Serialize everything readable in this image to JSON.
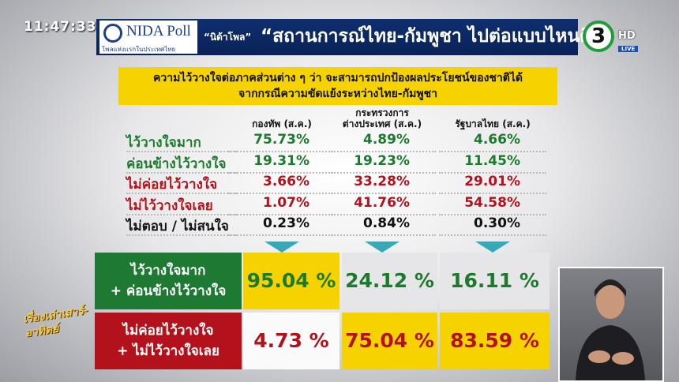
{
  "header": {
    "clock": "11:47:33",
    "logo_name": "NIDA Poll",
    "logo_tagline": "โพลแห่งแรกในประเทศไทย",
    "source": "“นิด้าโพล”",
    "title": "“สถานการณ์ไทย-กัมพูชา ไปต่อแบบไหนดี”",
    "channel": "3",
    "channel_hd": "HD",
    "channel_live": "LIVE"
  },
  "question": [
    "ความไว้วางใจต่อภาคส่วนต่าง ๆ ว่า จะสามารถปกป้องผลประโยชน์ของชาติได้",
    "จากกรณีความขัดแย้งระหว่างไทย-กัมพูชา"
  ],
  "table": {
    "columns": [
      [
        "กองทัพ (ส.ค.)"
      ],
      [
        "กระทรวงการ",
        "ต่างประเทศ (ส.ค.)"
      ],
      [
        "รัฐบาลไทย (ส.ค.)"
      ]
    ],
    "rows": [
      {
        "label": "ไว้วางใจมาก",
        "values": [
          "75.73%",
          "4.89%",
          "4.66%"
        ]
      },
      {
        "label": "ค่อนข้างไว้วางใจ",
        "values": [
          "19.31%",
          "19.23%",
          "11.45%"
        ]
      },
      {
        "label": "ไม่ค่อยไว้วางใจ",
        "values": [
          "3.66%",
          "33.28%",
          "29.01%"
        ]
      },
      {
        "label": "ไม่ไว้วางใจเลย",
        "values": [
          "1.07%",
          "41.76%",
          "54.58%"
        ]
      },
      {
        "label": "ไม่ตอบ / ไม่สนใจ",
        "values": [
          "0.23%",
          "0.84%",
          "0.30%"
        ]
      }
    ]
  },
  "summary": {
    "rows": [
      {
        "label": [
          "ไว้วางใจมาก",
          "+ ค่อนข้างไว้วางใจ"
        ],
        "values": [
          "95.04 %",
          "24.12 %",
          "16.11 %"
        ]
      },
      {
        "label": [
          "ไม่ค่อยไว้วางใจ",
          "+ ไม่ไว้วางใจเลย"
        ],
        "values": [
          "4.73 %",
          "75.04 %",
          "83.59 %"
        ]
      }
    ]
  },
  "program_logo": "เรื่องเล่าเสาร์-อาทิตย์"
}
